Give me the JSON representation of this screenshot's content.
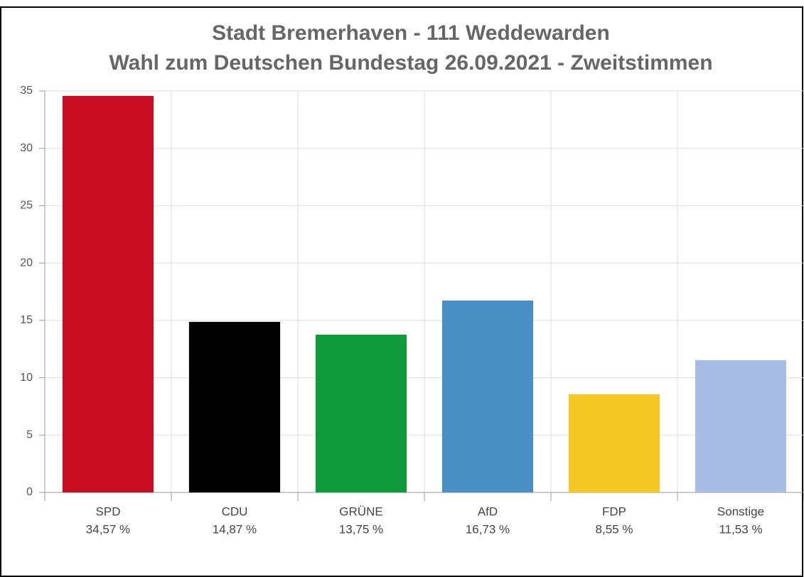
{
  "chart_data": {
    "type": "bar",
    "title": [
      "Stadt Bremerhaven - 111 Weddewarden",
      "Wahl zum Deutschen Bundestag 26.09.2021  - Zweitstimmen"
    ],
    "categories": [
      "SPD",
      "CDU",
      "GRÜNE",
      "AfD",
      "FDP",
      "Sonstige"
    ],
    "values": [
      34.57,
      14.87,
      13.75,
      16.73,
      8.55,
      11.53
    ],
    "value_labels": [
      "34,57 %",
      "14,87 %",
      "13,75 %",
      "16,73 %",
      "8,55 %",
      "11,53 %"
    ],
    "colors": [
      "#c80c21",
      "#000000",
      "#0e9a3a",
      "#4a8fc3",
      "#f5c722",
      "#a8bde3"
    ],
    "ylim": [
      0,
      35
    ],
    "yticks": [
      0,
      5,
      10,
      15,
      20,
      25,
      30,
      35
    ],
    "grid": true
  }
}
